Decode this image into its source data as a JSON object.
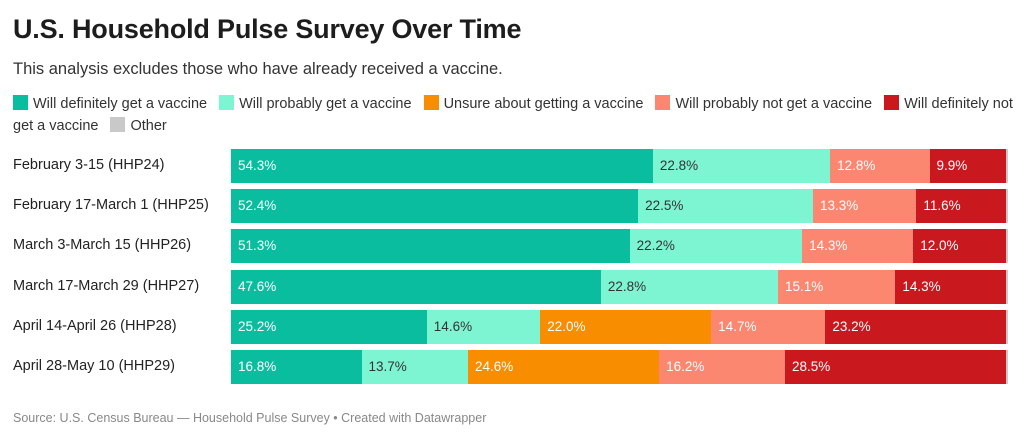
{
  "title": "U.S. Household Pulse Survey Over Time",
  "subtitle": "This analysis excludes those who have already received a vaccine.",
  "source": "Source: U.S. Census Bureau — Household Pulse Survey • Created with Datawrapper",
  "chart_data": {
    "type": "bar",
    "orientation": "horizontal",
    "stacked": true,
    "percent": true,
    "xlim": [
      0,
      100
    ],
    "categories": [
      "February 3-15 (HHP24)",
      "February 17-March 1 (HHP25)",
      "March 3-March 15 (HHP26)",
      "March 17-March 29 (HHP27)",
      "April 14-April 26 (HHP28)",
      "April 28-May 10 (HHP29)"
    ],
    "series": [
      {
        "name": "Will definitely get a vaccine",
        "color": "#0bbd9f",
        "label_color": "#ffffff",
        "values": [
          54.3,
          52.4,
          51.3,
          47.6,
          25.2,
          16.8
        ]
      },
      {
        "name": "Will probably get a vaccine",
        "color": "#7ef5d2",
        "label_color": "#333333",
        "values": [
          22.8,
          22.5,
          22.2,
          22.8,
          14.6,
          13.7
        ]
      },
      {
        "name": "Unsure about getting a vaccine",
        "color": "#f98d00",
        "label_color": "#ffffff",
        "values": [
          null,
          null,
          null,
          null,
          22.0,
          24.6
        ]
      },
      {
        "name": "Will probably not get a vaccine",
        "color": "#fc8771",
        "label_color": "#ffffff",
        "values": [
          12.8,
          13.3,
          14.3,
          15.1,
          14.7,
          16.2
        ]
      },
      {
        "name": "Will definitely not get a vaccine",
        "color": "#c9181e",
        "label_color": "#ffffff",
        "values": [
          9.9,
          11.6,
          12.0,
          14.3,
          23.2,
          28.5
        ]
      },
      {
        "name": "Other",
        "color": "#c9c9c9",
        "label_color": "#333333",
        "values": [
          0.2,
          0.2,
          0.2,
          0.2,
          0.3,
          0.2
        ]
      }
    ]
  }
}
